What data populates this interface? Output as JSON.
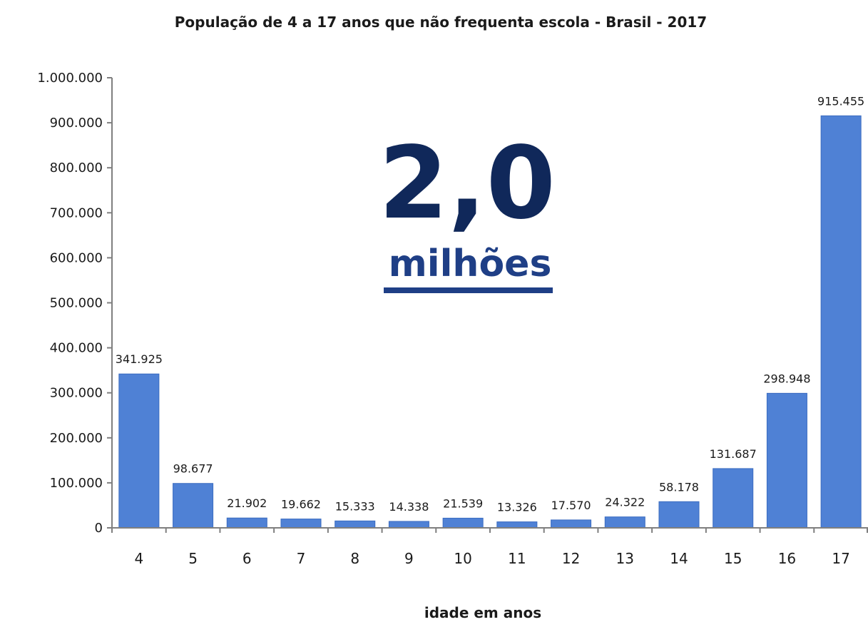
{
  "chart_data": {
    "type": "bar",
    "title": "População de 4 a 17 anos que não frequenta escola - Brasil - 2017",
    "xlabel": "idade em anos",
    "ylabel": "",
    "categories": [
      "4",
      "5",
      "6",
      "7",
      "8",
      "9",
      "10",
      "11",
      "12",
      "13",
      "14",
      "15",
      "16",
      "17"
    ],
    "values": [
      341925,
      98677,
      21902,
      19662,
      15333,
      14338,
      21539,
      13326,
      17570,
      24322,
      58178,
      131687,
      298948,
      915455
    ],
    "value_labels": [
      "341.925",
      "98.677",
      "21.902",
      "19.662",
      "15.333",
      "14.338",
      "21.539",
      "13.326",
      "17.570",
      "24.322",
      "58.178",
      "131.687",
      "298.948",
      "915.455"
    ],
    "ylim": [
      0,
      1000000
    ],
    "yticks": [
      0,
      100000,
      200000,
      300000,
      400000,
      500000,
      600000,
      700000,
      800000,
      900000,
      1000000
    ],
    "ytick_labels": [
      "0",
      "100.000",
      "200.000",
      "300.000",
      "400.000",
      "500.000",
      "600.000",
      "700.000",
      "800.000",
      "900.000",
      "1.000.000"
    ],
    "grid": false,
    "bar_color": "#4f81d5",
    "annotation": {
      "number": "2,0",
      "unit": "milhões",
      "color": "#10285a"
    }
  }
}
